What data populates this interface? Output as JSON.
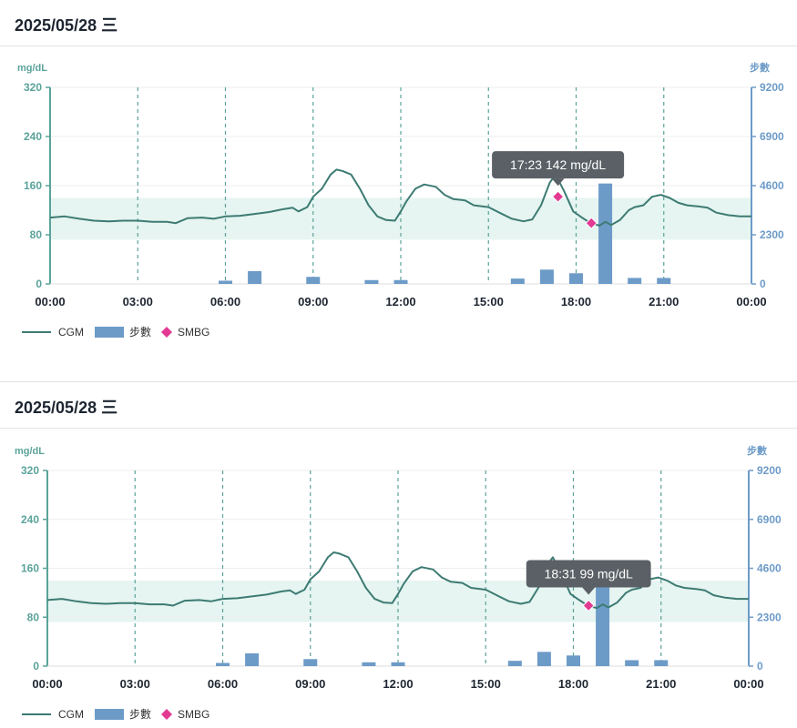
{
  "colors": {
    "cgm": "#3d7b73",
    "steps": "#6d9bc8",
    "smbg": "#e23a93",
    "target_band": "#e6f5f1",
    "left_axis": "#5aa39a",
    "right_axis": "#6d9bc8",
    "grid": "#5aa39a",
    "tooltip_bg": "#5b6066"
  },
  "panels": [
    {
      "title": "2025/05/28 三",
      "tooltip": {
        "time": "17:23",
        "value": "142 mg/dL",
        "x_hour": 17.38,
        "y": 142
      },
      "legend": {
        "cgm": "CGM",
        "steps": "步數",
        "smbg": "SMBG"
      }
    },
    {
      "title": "2025/05/28 三",
      "tooltip": {
        "time": "18:31",
        "value": "99 mg/dL",
        "x_hour": 18.52,
        "y": 99
      },
      "legend": {
        "cgm": "CGM",
        "steps": "步數",
        "smbg": "SMBG"
      }
    }
  ],
  "chart_data": {
    "type": "line",
    "y_left_label": "mg/dL",
    "y_right_label": "步數",
    "y_left_ticks": [
      "320",
      "240",
      "160",
      "80",
      "0"
    ],
    "y_right_ticks": [
      "9200",
      "6900",
      "4600",
      "2300",
      "0"
    ],
    "y_left_lim": [
      0,
      320
    ],
    "y_right_lim": [
      0,
      9200
    ],
    "x_ticks": [
      "00:00",
      "03:00",
      "06:00",
      "09:00",
      "12:00",
      "15:00",
      "18:00",
      "21:00",
      "00:00"
    ],
    "x_lim_hours": [
      0,
      24
    ],
    "target_range": [
      72,
      140
    ],
    "grid": "dashed vertical at 3-hour ticks",
    "series": [
      {
        "name": "CGM",
        "type": "line",
        "points": [
          [
            0.0,
            108
          ],
          [
            0.5,
            110
          ],
          [
            1.0,
            106
          ],
          [
            1.5,
            103
          ],
          [
            2.0,
            102
          ],
          [
            2.5,
            103
          ],
          [
            3.0,
            103
          ],
          [
            3.5,
            101
          ],
          [
            4.0,
            101
          ],
          [
            4.3,
            99
          ],
          [
            4.7,
            107
          ],
          [
            5.2,
            108
          ],
          [
            5.6,
            106
          ],
          [
            6.0,
            110
          ],
          [
            6.5,
            111
          ],
          [
            7.0,
            114
          ],
          [
            7.5,
            117
          ],
          [
            7.8,
            120
          ],
          [
            8.0,
            122
          ],
          [
            8.3,
            124
          ],
          [
            8.5,
            118
          ],
          [
            8.8,
            125
          ],
          [
            9.0,
            142
          ],
          [
            9.3,
            155
          ],
          [
            9.6,
            178
          ],
          [
            9.8,
            186
          ],
          [
            10.0,
            184
          ],
          [
            10.3,
            178
          ],
          [
            10.6,
            155
          ],
          [
            10.9,
            128
          ],
          [
            11.2,
            110
          ],
          [
            11.5,
            104
          ],
          [
            11.8,
            103
          ],
          [
            12.0,
            118
          ],
          [
            12.2,
            135
          ],
          [
            12.5,
            155
          ],
          [
            12.8,
            162
          ],
          [
            13.2,
            158
          ],
          [
            13.5,
            145
          ],
          [
            13.8,
            138
          ],
          [
            14.2,
            136
          ],
          [
            14.5,
            128
          ],
          [
            15.0,
            125
          ],
          [
            15.5,
            113
          ],
          [
            15.8,
            106
          ],
          [
            16.2,
            102
          ],
          [
            16.5,
            105
          ],
          [
            16.8,
            128
          ],
          [
            17.1,
            165
          ],
          [
            17.3,
            178
          ],
          [
            17.6,
            150
          ],
          [
            17.9,
            118
          ],
          [
            18.2,
            108
          ],
          [
            18.5,
            99
          ],
          [
            18.8,
            95
          ],
          [
            19.0,
            101
          ],
          [
            19.2,
            96
          ],
          [
            19.5,
            104
          ],
          [
            19.8,
            120
          ],
          [
            20.0,
            125
          ],
          [
            20.3,
            128
          ],
          [
            20.6,
            142
          ],
          [
            20.9,
            145
          ],
          [
            21.2,
            140
          ],
          [
            21.5,
            132
          ],
          [
            21.8,
            128
          ],
          [
            22.2,
            126
          ],
          [
            22.5,
            124
          ],
          [
            22.8,
            116
          ],
          [
            23.2,
            112
          ],
          [
            23.6,
            110
          ],
          [
            24.0,
            110
          ]
        ]
      },
      {
        "name": "步數",
        "type": "bar",
        "axis": "right",
        "bars": [
          [
            6.0,
            150
          ],
          [
            7.0,
            600
          ],
          [
            9.0,
            330
          ],
          [
            11.0,
            180
          ],
          [
            12.0,
            180
          ],
          [
            16.0,
            250
          ],
          [
            17.0,
            670
          ],
          [
            18.0,
            500
          ],
          [
            19.0,
            4700
          ],
          [
            20.0,
            280
          ],
          [
            21.0,
            280
          ]
        ]
      },
      {
        "name": "SMBG",
        "type": "scatter",
        "points": [
          [
            17.38,
            142
          ],
          [
            18.52,
            99
          ]
        ]
      }
    ]
  }
}
